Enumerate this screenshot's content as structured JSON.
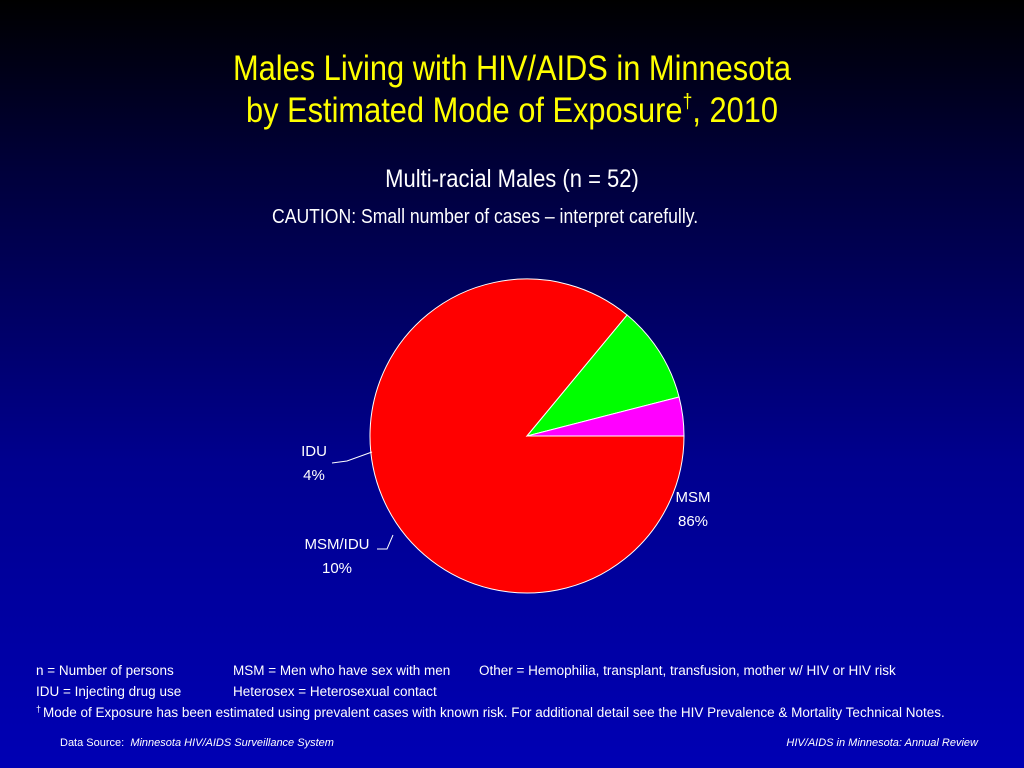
{
  "slide": {
    "title_line1": "Males Living with HIV/AIDS in Minnesota",
    "title_line2_prefix": "by Estimated Mode of Exposure",
    "title_dagger": "†",
    "title_line2_suffix": ", 2010",
    "subtitle": "Multi-racial Males (n = 52)",
    "caution": "CAUTION: Small number of cases – interpret carefully."
  },
  "chart_data": {
    "type": "pie",
    "slices": [
      {
        "label": "MSM",
        "value_label": "86%",
        "value": 86,
        "color": "#ff0000"
      },
      {
        "label": "MSM/IDU",
        "value_label": "10%",
        "value": 10,
        "color": "#00ff00"
      },
      {
        "label": "IDU",
        "value_label": "4%",
        "value": 4,
        "color": "#ff00ff"
      }
    ],
    "start_direction": "east",
    "direction": "clockwise",
    "slice_border_color": "#ffffff"
  },
  "legend": {
    "row1": [
      "n = Number of persons",
      "MSM = Men who have sex with men",
      "Other = Hemophilia, transplant, transfusion, mother w/ HIV or HIV risk"
    ],
    "row2": [
      "IDU = Injecting drug use",
      "Heterosex = Heterosexual contact"
    ],
    "footnote_dagger": "†",
    "footnote": "Mode of Exposure has been estimated using prevalent cases with known risk. For additional detail see the HIV Prevalence & Mortality Technical Notes."
  },
  "footer": {
    "source_label": "Data Source:",
    "source_name": "Minnesota HIV/AIDS Surveillance System",
    "series_name": "HIV/AIDS in Minnesota: Annual Review"
  },
  "colors": {
    "title": "#ffff00",
    "text": "#ffffff"
  }
}
